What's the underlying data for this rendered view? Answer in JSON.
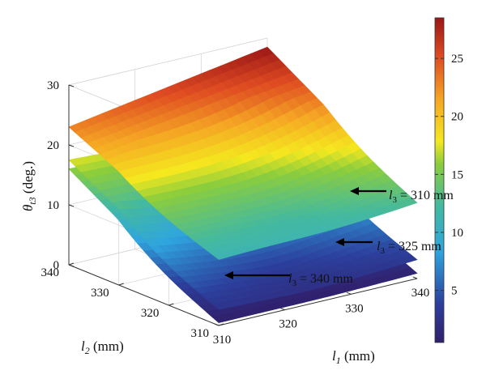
{
  "chart_data": {
    "type": "surface3d",
    "title": "",
    "zlabel": {
      "main": "θ",
      "sub": "t3",
      "unit": " (deg.)"
    },
    "xlabel": {
      "main": "l",
      "sub": "1",
      "unit": " (mm)"
    },
    "ylabel": {
      "main": "l",
      "sub": "2",
      "unit": " (mm)"
    },
    "xlim": [
      310,
      340
    ],
    "ylim": [
      310,
      340
    ],
    "zlim": [
      0,
      30
    ],
    "x_ticks": [
      "310",
      "320",
      "330",
      "340"
    ],
    "y_ticks": [
      "310",
      "320",
      "330",
      "340"
    ],
    "z_ticks": [
      "0",
      "10",
      "20",
      "30"
    ],
    "colorbar": {
      "range": [
        0.5,
        28.5
      ],
      "ticks": [
        "5",
        "10",
        "15",
        "20",
        "25"
      ],
      "colormap": "jet"
    },
    "grid": true,
    "surfaces": [
      {
        "label": {
          "main": "l",
          "sub": "3",
          "value": " = 310 mm"
        },
        "corners": {
          "x310_y340": 23,
          "x310_y310": 11,
          "x340_y310": 13,
          "x340_y340": 28.5
        },
        "min": 11
      },
      {
        "label": {
          "main": "l",
          "sub": "3",
          "value": " = 325 mm"
        },
        "corners": {
          "x310_y340": 17.5,
          "x310_y310": 3,
          "x340_y310": 3.5,
          "x340_y340": 16
        },
        "min": 1.5
      },
      {
        "label": {
          "main": "l",
          "sub": "3",
          "value": " = 340 mm"
        },
        "corners": {
          "x310_y340": 16,
          "x310_y310": 0.5,
          "x340_y310": 1,
          "x340_y340": 15
        },
        "min": 0.3
      }
    ]
  }
}
